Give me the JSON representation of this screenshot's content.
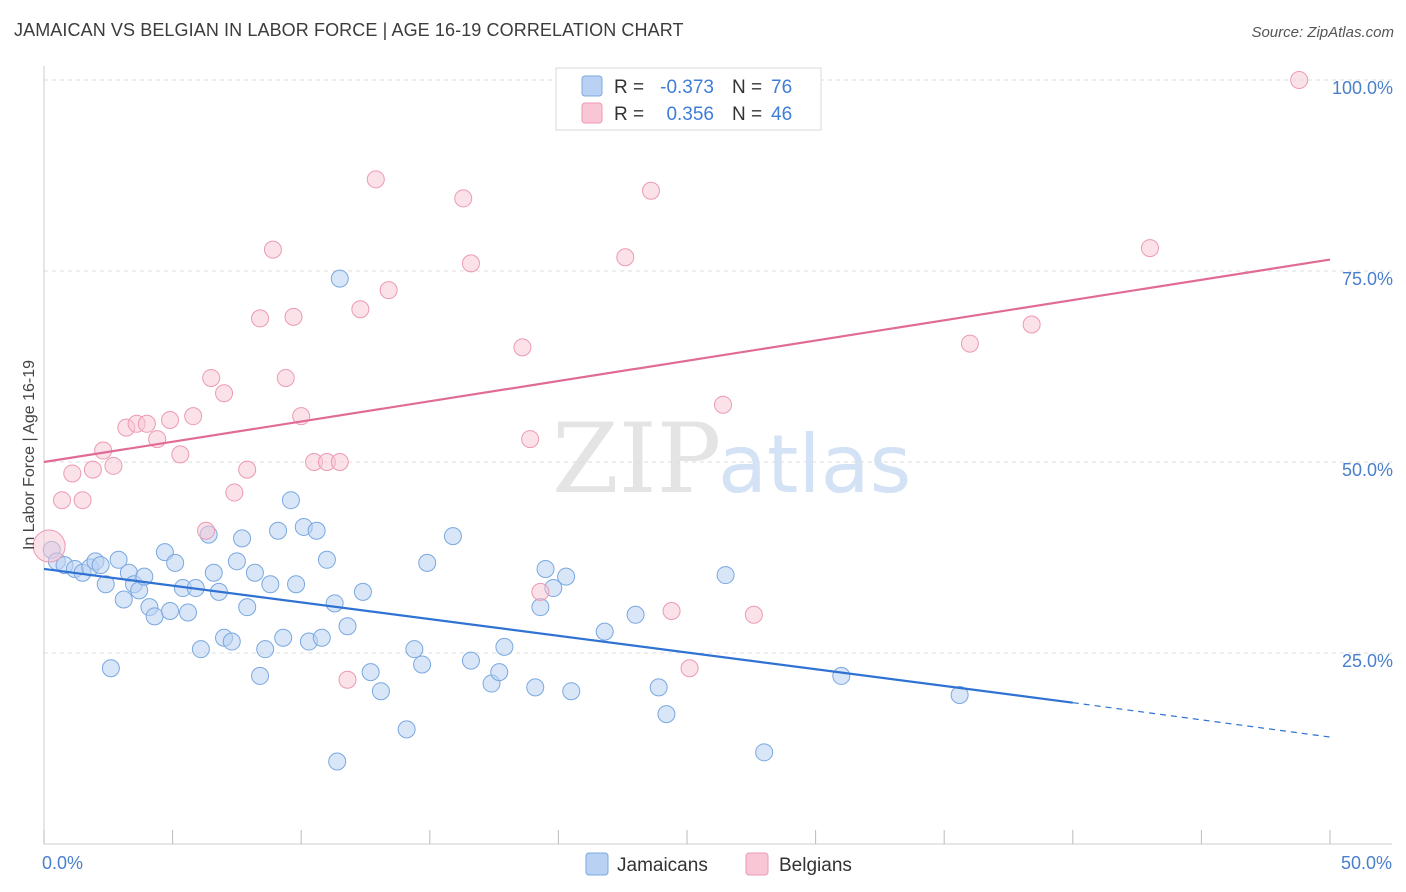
{
  "title": "JAMAICAN VS BELGIAN IN LABOR FORCE | AGE 16-19 CORRELATION CHART",
  "source": "Source: ZipAtlas.com",
  "watermark": {
    "zip": "ZIP",
    "atlas": "atlas"
  },
  "colors": {
    "jamaican_fill": "#b9d2f3",
    "jamaican_stroke": "#7aa8e0",
    "jamaican_line": "#2f72d3",
    "belgian_fill": "#f8c6d4",
    "belgian_stroke": "#ec9ab4",
    "belgian_line": "#e06b96",
    "tick_text": "#4a7fcc",
    "grid": "#dddddd"
  },
  "legend": {
    "rows": [
      {
        "r_label": "R =",
        "r_value": "-0.373",
        "n_label": "N =",
        "n_value": "76"
      },
      {
        "r_label": "R =",
        "r_value": "0.356",
        "n_label": "N =",
        "n_value": "46"
      }
    ]
  },
  "chart_data": {
    "type": "scatter",
    "title": "JAMAICAN VS BELGIAN IN LABOR FORCE | AGE 16-19 CORRELATION CHART",
    "xlabel": "",
    "ylabel": "In Labor Force | Age 16-19",
    "xlim": [
      0,
      50
    ],
    "ylim": [
      0,
      105
    ],
    "x_tick_labels": [
      "0.0%",
      "50.0%"
    ],
    "y_ticks": [
      25,
      50,
      75,
      100
    ],
    "y_tick_labels": [
      "25.0%",
      "50.0%",
      "75.0%",
      "100.0%"
    ],
    "grid": true,
    "legend_position": "top-center",
    "series": [
      {
        "name": "Jamaicans",
        "r": -0.373,
        "n": 76,
        "trend": {
          "x0": 0,
          "y0": 36.0,
          "x1": 40,
          "y1": 18.5,
          "dashed_to_x": 50,
          "dashed_y": 14.0
        },
        "points": [
          [
            0.3,
            38.5
          ],
          [
            0.5,
            37.0
          ],
          [
            0.8,
            36.5
          ],
          [
            1.2,
            36.0
          ],
          [
            1.5,
            35.5
          ],
          [
            1.8,
            36.2
          ],
          [
            2.0,
            37.0
          ],
          [
            2.2,
            36.5
          ],
          [
            2.4,
            34.0
          ],
          [
            2.6,
            23.0
          ],
          [
            2.9,
            37.2
          ],
          [
            3.1,
            32.0
          ],
          [
            3.3,
            35.5
          ],
          [
            3.5,
            34.0
          ],
          [
            3.7,
            33.2
          ],
          [
            3.9,
            35.0
          ],
          [
            4.1,
            31.0
          ],
          [
            4.3,
            29.8
          ],
          [
            4.7,
            38.2
          ],
          [
            4.9,
            30.5
          ],
          [
            5.1,
            36.8
          ],
          [
            5.4,
            33.5
          ],
          [
            5.6,
            30.3
          ],
          [
            5.9,
            33.5
          ],
          [
            6.1,
            25.5
          ],
          [
            6.4,
            40.5
          ],
          [
            6.6,
            35.5
          ],
          [
            6.8,
            33.0
          ],
          [
            7.0,
            27.0
          ],
          [
            7.3,
            26.5
          ],
          [
            7.5,
            37.0
          ],
          [
            7.7,
            40.0
          ],
          [
            7.9,
            31.0
          ],
          [
            8.2,
            35.5
          ],
          [
            8.4,
            22.0
          ],
          [
            8.6,
            25.5
          ],
          [
            8.8,
            34.0
          ],
          [
            9.1,
            41.0
          ],
          [
            9.3,
            27.0
          ],
          [
            9.6,
            45.0
          ],
          [
            9.8,
            34.0
          ],
          [
            10.1,
            41.5
          ],
          [
            10.3,
            26.5
          ],
          [
            10.6,
            41.0
          ],
          [
            10.8,
            27.0
          ],
          [
            11.0,
            37.2
          ],
          [
            11.3,
            31.5
          ],
          [
            11.5,
            74.0
          ],
          [
            11.8,
            28.5
          ],
          [
            11.4,
            10.8
          ],
          [
            12.4,
            33.0
          ],
          [
            12.7,
            22.5
          ],
          [
            13.1,
            20.0
          ],
          [
            14.1,
            15.0
          ],
          [
            14.4,
            25.5
          ],
          [
            14.7,
            23.5
          ],
          [
            14.9,
            36.8
          ],
          [
            15.9,
            40.3
          ],
          [
            16.6,
            24.0
          ],
          [
            17.4,
            21.0
          ],
          [
            17.7,
            22.5
          ],
          [
            17.9,
            25.8
          ],
          [
            19.1,
            20.5
          ],
          [
            19.3,
            31.0
          ],
          [
            19.5,
            36.0
          ],
          [
            19.8,
            33.5
          ],
          [
            20.3,
            35.0
          ],
          [
            20.5,
            20.0
          ],
          [
            21.8,
            27.8
          ],
          [
            23.0,
            30.0
          ],
          [
            23.9,
            20.5
          ],
          [
            24.2,
            17.0
          ],
          [
            26.5,
            35.2
          ],
          [
            28.0,
            12.0
          ],
          [
            31.0,
            22.0
          ],
          [
            35.6,
            19.5
          ]
        ]
      },
      {
        "name": "Belgians",
        "r": 0.356,
        "n": 46,
        "trend": {
          "x0": 0,
          "y0": 50.0,
          "x1": 50,
          "y1": 76.5
        },
        "points": [
          [
            0.2,
            39.0
          ],
          [
            0.7,
            45.0
          ],
          [
            1.1,
            48.5
          ],
          [
            1.5,
            45.0
          ],
          [
            1.9,
            49.0
          ],
          [
            2.3,
            51.5
          ],
          [
            2.7,
            49.5
          ],
          [
            3.2,
            54.5
          ],
          [
            3.6,
            55.0
          ],
          [
            4.0,
            55.0
          ],
          [
            4.4,
            53.0
          ],
          [
            4.9,
            55.5
          ],
          [
            5.3,
            51.0
          ],
          [
            5.8,
            56.0
          ],
          [
            6.3,
            41.0
          ],
          [
            6.5,
            61.0
          ],
          [
            7.0,
            59.0
          ],
          [
            7.4,
            46.0
          ],
          [
            7.9,
            49.0
          ],
          [
            8.4,
            68.8
          ],
          [
            8.9,
            77.8
          ],
          [
            9.4,
            61.0
          ],
          [
            9.7,
            69.0
          ],
          [
            10.0,
            56.0
          ],
          [
            10.5,
            50.0
          ],
          [
            11.0,
            50.0
          ],
          [
            11.5,
            50.0
          ],
          [
            11.8,
            21.5
          ],
          [
            12.3,
            70.0
          ],
          [
            12.9,
            87.0
          ],
          [
            13.4,
            72.5
          ],
          [
            16.3,
            84.5
          ],
          [
            16.6,
            76.0
          ],
          [
            18.6,
            65.0
          ],
          [
            18.9,
            53.0
          ],
          [
            19.3,
            33.0
          ],
          [
            22.6,
            76.8
          ],
          [
            23.6,
            85.5
          ],
          [
            24.4,
            30.5
          ],
          [
            25.1,
            23.0
          ],
          [
            26.4,
            57.5
          ],
          [
            27.6,
            30.0
          ],
          [
            36.0,
            65.5
          ],
          [
            38.4,
            68.0
          ],
          [
            43.0,
            78.0
          ],
          [
            48.8,
            100.0
          ]
        ]
      }
    ]
  }
}
